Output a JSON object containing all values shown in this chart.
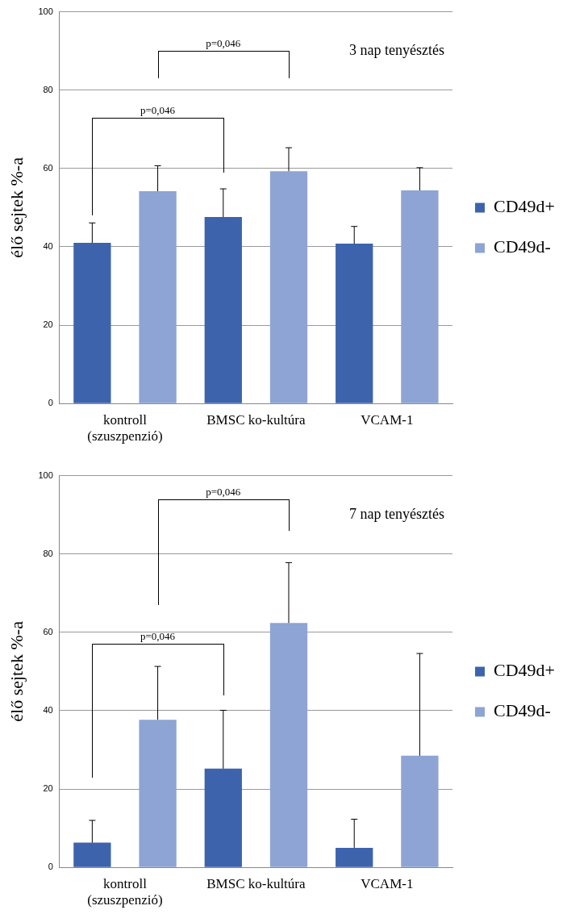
{
  "chart_data": [
    {
      "type": "bar",
      "title": "3 nap tenyésztés",
      "ylabel": "élő sejtek %-a",
      "categories": [
        "kontroll\n(szuszpenzió)",
        "BMSC ko-kultúra",
        "VCAM-1"
      ],
      "series": [
        {
          "name": "CD49d+",
          "color": "#3d63ad",
          "values": [
            41.0,
            47.6,
            40.8
          ],
          "errors": [
            [
              41.0,
              46.1
            ],
            [
              47.6,
              54.8
            ],
            [
              40.8,
              45.2
            ]
          ]
        },
        {
          "name": "CD49d-",
          "color": "#8da4d4",
          "values": [
            54.2,
            59.3,
            54.4
          ],
          "errors": [
            [
              54.2,
              60.7
            ],
            [
              59.3,
              65.3
            ],
            [
              54.4,
              60.2
            ]
          ]
        }
      ],
      "ylim": [
        0,
        100
      ],
      "yticks": [
        0,
        20,
        40,
        60,
        80,
        100
      ],
      "grid": "y",
      "legend": "right",
      "annotations": [
        "p=0,046",
        "p=0,046"
      ]
    },
    {
      "type": "bar",
      "title": "7 nap tenyésztés",
      "ylabel": "élő sejtek %-a",
      "categories": [
        "kontroll\n(szuszpenzió)",
        "BMSC ko-kultúra",
        "VCAM-1"
      ],
      "series": [
        {
          "name": "CD49d+",
          "color": "#3d63ad",
          "values": [
            6.3,
            25.2,
            5.0
          ],
          "errors": [
            [
              6.3,
              12.0
            ],
            [
              25.2,
              40.1
            ],
            [
              5.0,
              12.3
            ]
          ]
        },
        {
          "name": "CD49d-",
          "color": "#8da4d4",
          "values": [
            37.7,
            62.4,
            28.5
          ],
          "errors": [
            [
              37.7,
              51.3
            ],
            [
              62.4,
              77.8
            ],
            [
              28.5,
              54.6
            ]
          ]
        }
      ],
      "ylim": [
        0,
        100
      ],
      "yticks": [
        0,
        20,
        40,
        60,
        80,
        100
      ],
      "grid": "y",
      "legend": "right",
      "annotations": [
        "p=0,046",
        "p=0,046"
      ]
    }
  ]
}
